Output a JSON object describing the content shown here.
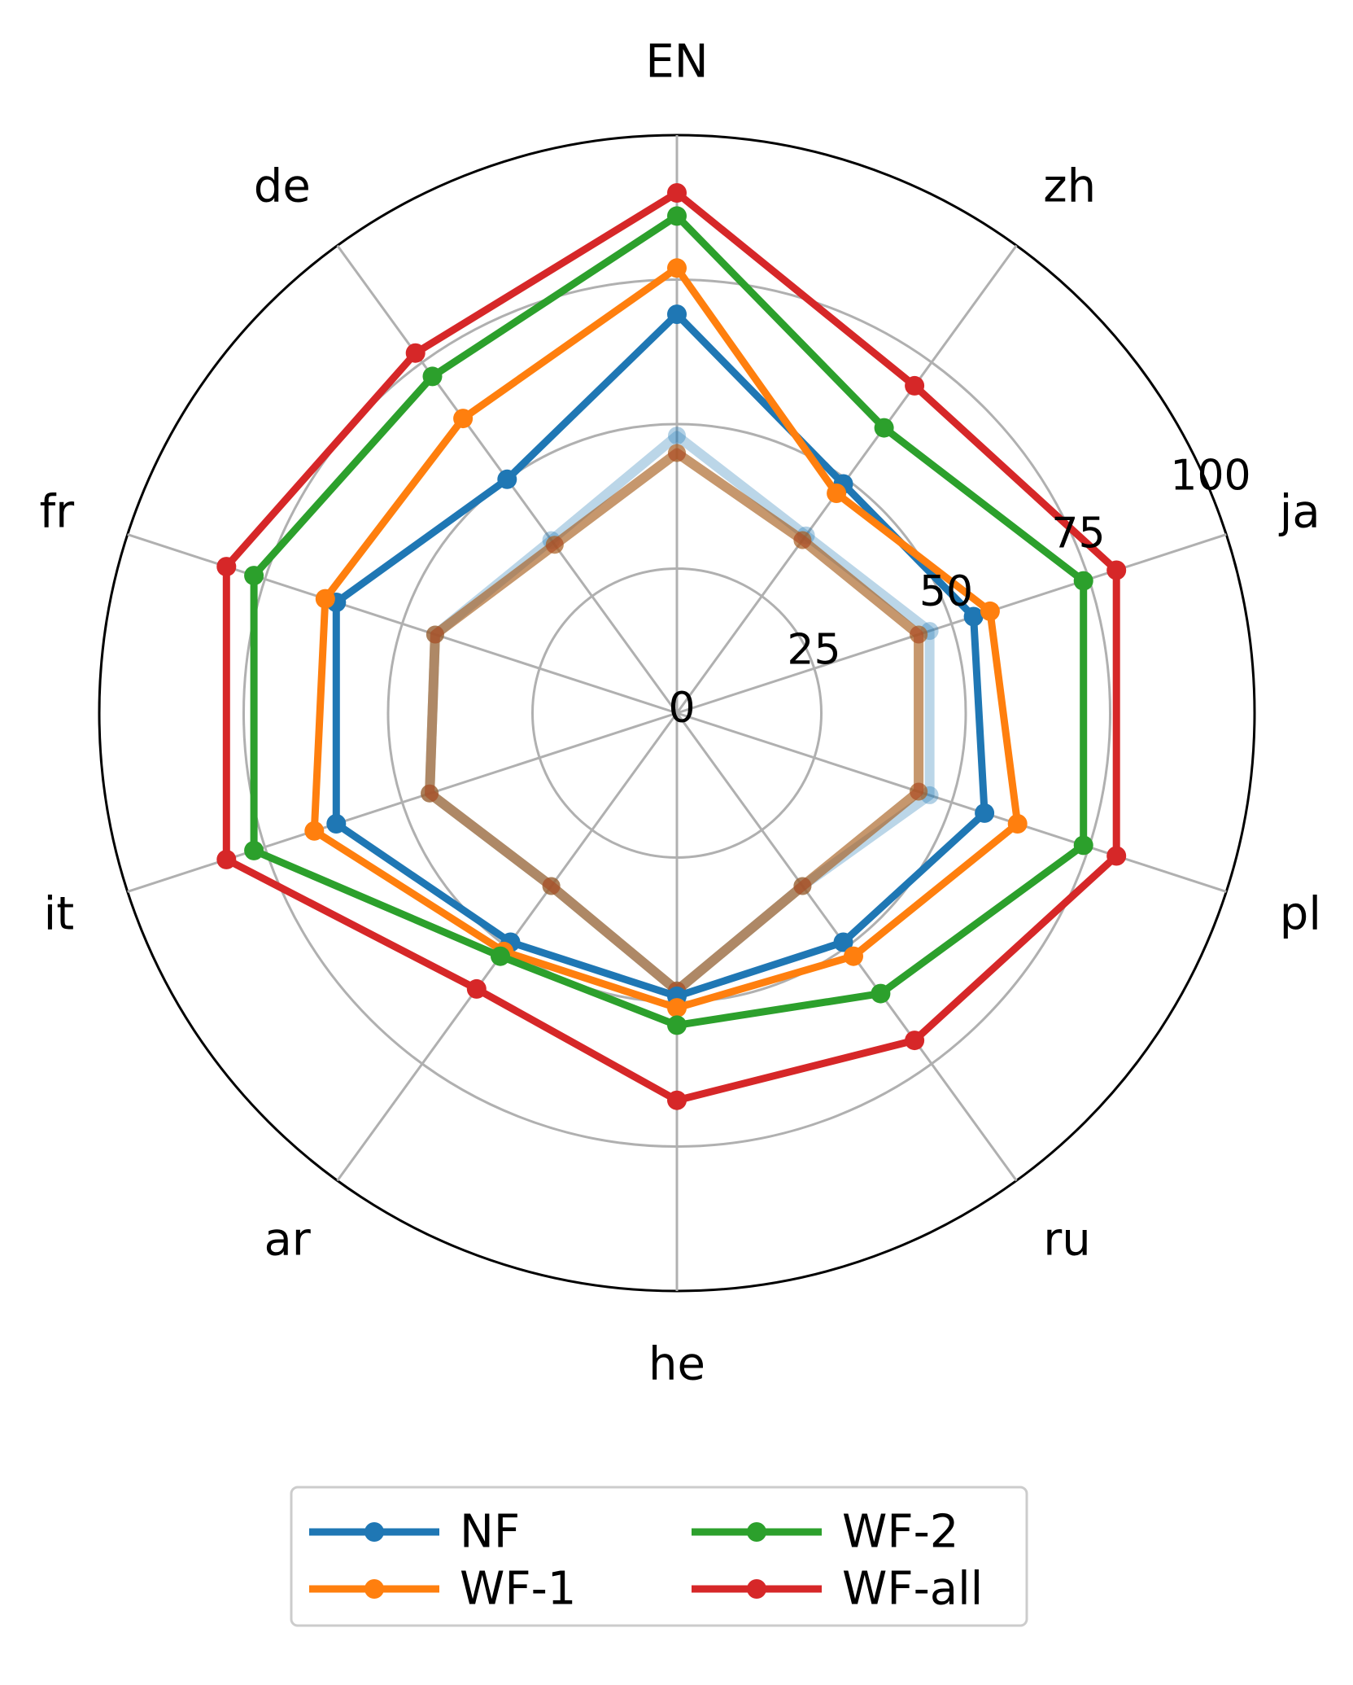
{
  "chart_data": {
    "type": "radar",
    "axes": [
      "EN",
      "zh",
      "ja",
      "pl",
      "ru",
      "he",
      "ar",
      "it",
      "fr",
      "de"
    ],
    "rlim": [
      0,
      100
    ],
    "rticks": [
      "0",
      "25",
      "50",
      "75",
      "100"
    ],
    "rtick_values": [
      0,
      25,
      50,
      75,
      100
    ],
    "grid": true,
    "legend": {
      "placement": "bottom-center",
      "columns": 2
    },
    "series": [
      {
        "name": "NF",
        "color": "#1f77b4",
        "values": [
          69,
          49,
          54,
          56,
          49,
          49,
          49,
          62,
          62,
          50
        ]
      },
      {
        "name": "WF-1",
        "color": "#ff7f0e",
        "values": [
          77,
          47,
          57,
          62,
          52,
          51,
          51,
          66,
          64,
          63
        ]
      },
      {
        "name": "WF-2",
        "color": "#2ca02c",
        "values": [
          86,
          61,
          74,
          74,
          60,
          54,
          52,
          77,
          77,
          72
        ]
      },
      {
        "name": "WF-all",
        "color": "#d62728",
        "values": [
          90,
          70,
          80,
          80,
          70,
          67,
          59,
          82,
          82,
          77
        ]
      }
    ],
    "inner_series": [
      {
        "name": "NF",
        "color": "#1f77b4",
        "values": [
          48,
          38,
          46,
          46,
          37,
          48,
          37,
          45,
          44,
          37
        ]
      },
      {
        "name": "WF-1",
        "color": "#ff7f0e",
        "values": [
          45,
          37,
          44,
          44,
          37,
          48,
          37,
          45,
          44,
          36
        ]
      },
      {
        "name": "WF-2",
        "color": "#2ca02c",
        "values": [
          45,
          37,
          44,
          44,
          37,
          48,
          37,
          45,
          44,
          36
        ]
      },
      {
        "name": "WF-all",
        "color": "#d62728",
        "values": [
          45,
          37,
          44,
          44,
          37,
          48,
          37,
          45,
          44,
          36
        ]
      }
    ]
  }
}
